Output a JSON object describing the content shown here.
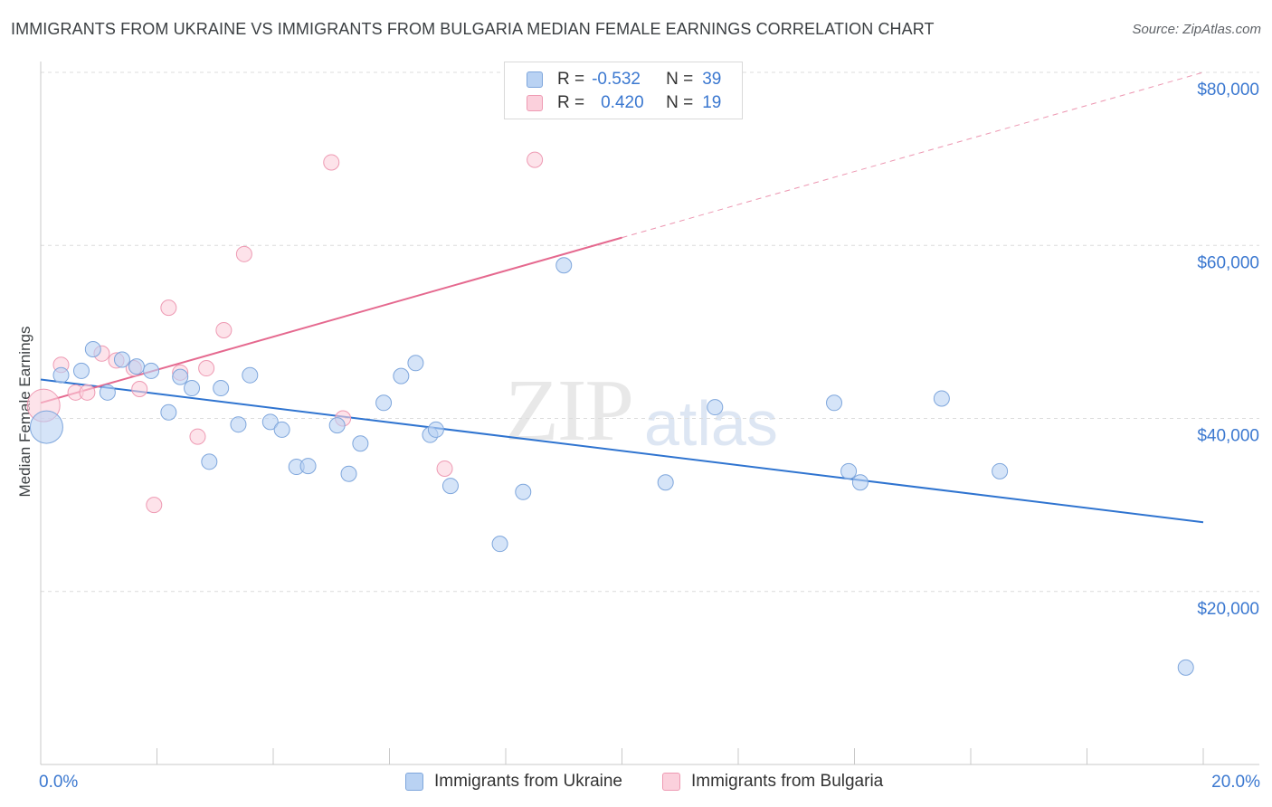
{
  "title": "IMMIGRANTS FROM UKRAINE VS IMMIGRANTS FROM BULGARIA MEDIAN FEMALE EARNINGS CORRELATION CHART",
  "source": "Source: ZipAtlas.com",
  "watermark": {
    "zip": "ZIP",
    "atlas": "atlas"
  },
  "colors": {
    "ukraine_fill": "#b9d2f3",
    "ukraine_stroke": "#7ea6dc",
    "ukraine_line": "#2f74d0",
    "bulgaria_fill": "#fbd0dc",
    "bulgaria_stroke": "#ee9ab3",
    "bulgaria_line": "#e5698f",
    "axis_text": "#3b78d0",
    "grid": "#dcdcdc"
  },
  "legend": {
    "rows": [
      {
        "r_label": "R =",
        "r_value": "-0.532",
        "n_label": "N =",
        "n_value": "39"
      },
      {
        "r_label": "R =",
        "r_value": "0.420",
        "n_label": "N =",
        "n_value": "19"
      }
    ]
  },
  "bottom_legend": [
    "Immigrants from Ukraine",
    "Immigrants from Bulgaria"
  ],
  "chart_data": {
    "type": "scatter",
    "title": "IMMIGRANTS FROM UKRAINE VS IMMIGRANTS FROM BULGARIA MEDIAN FEMALE EARNINGS CORRELATION CHART",
    "xlabel": "",
    "ylabel": "Median Female Earnings",
    "xlim": [
      0,
      20
    ],
    "ylim": [
      0,
      80000
    ],
    "x_tick_labels": [
      "0.0%",
      "20.0%"
    ],
    "y_ticks": [
      20000,
      40000,
      60000,
      80000
    ],
    "y_tick_labels": [
      "$20,000",
      "$40,000",
      "$60,000",
      "$80,000"
    ],
    "grid": true,
    "legend_position": "top-center",
    "series": [
      {
        "name": "Immigrants from Ukraine",
        "r": -0.532,
        "n": 39,
        "trend": {
          "x": [
            0,
            20
          ],
          "y": [
            44500,
            28000
          ]
        },
        "points": [
          {
            "x": 0.1,
            "y": 39000,
            "big": true
          },
          {
            "x": 0.35,
            "y": 45000
          },
          {
            "x": 0.7,
            "y": 45500
          },
          {
            "x": 0.9,
            "y": 48000
          },
          {
            "x": 1.15,
            "y": 43000
          },
          {
            "x": 1.4,
            "y": 46800
          },
          {
            "x": 1.65,
            "y": 46000
          },
          {
            "x": 1.9,
            "y": 45500
          },
          {
            "x": 2.2,
            "y": 40700
          },
          {
            "x": 2.4,
            "y": 44800
          },
          {
            "x": 2.6,
            "y": 43500
          },
          {
            "x": 2.9,
            "y": 35000
          },
          {
            "x": 3.1,
            "y": 43500
          },
          {
            "x": 3.4,
            "y": 39300
          },
          {
            "x": 3.6,
            "y": 45000
          },
          {
            "x": 3.95,
            "y": 39600
          },
          {
            "x": 4.15,
            "y": 38700
          },
          {
            "x": 4.4,
            "y": 34400
          },
          {
            "x": 4.6,
            "y": 34500
          },
          {
            "x": 5.1,
            "y": 39200
          },
          {
            "x": 5.3,
            "y": 33600
          },
          {
            "x": 5.5,
            "y": 37100
          },
          {
            "x": 5.9,
            "y": 41800
          },
          {
            "x": 6.2,
            "y": 44900
          },
          {
            "x": 6.45,
            "y": 46400
          },
          {
            "x": 6.7,
            "y": 38100
          },
          {
            "x": 6.8,
            "y": 38700
          },
          {
            "x": 7.05,
            "y": 32200
          },
          {
            "x": 7.9,
            "y": 25500
          },
          {
            "x": 8.3,
            "y": 31500
          },
          {
            "x": 9.0,
            "y": 57700
          },
          {
            "x": 10.75,
            "y": 32600
          },
          {
            "x": 11.6,
            "y": 41300
          },
          {
            "x": 13.65,
            "y": 41800
          },
          {
            "x": 13.9,
            "y": 33900
          },
          {
            "x": 14.1,
            "y": 32600
          },
          {
            "x": 15.5,
            "y": 42300
          },
          {
            "x": 16.5,
            "y": 33900
          },
          {
            "x": 19.7,
            "y": 11200
          }
        ]
      },
      {
        "name": "Immigrants from Bulgaria",
        "r": 0.42,
        "n": 19,
        "trend": {
          "x": [
            0,
            10
          ],
          "y": [
            41800,
            60900
          ]
        },
        "trend_dashed_to": {
          "x": 20,
          "y": 80000
        },
        "points": [
          {
            "x": 0.05,
            "y": 41500,
            "big": true
          },
          {
            "x": 0.35,
            "y": 46200
          },
          {
            "x": 0.6,
            "y": 43000
          },
          {
            "x": 0.8,
            "y": 43000
          },
          {
            "x": 1.05,
            "y": 47500
          },
          {
            "x": 1.3,
            "y": 46700
          },
          {
            "x": 1.6,
            "y": 45800
          },
          {
            "x": 1.7,
            "y": 43400
          },
          {
            "x": 1.95,
            "y": 30000
          },
          {
            "x": 2.2,
            "y": 52800
          },
          {
            "x": 2.4,
            "y": 45300
          },
          {
            "x": 2.7,
            "y": 37900
          },
          {
            "x": 2.85,
            "y": 45800
          },
          {
            "x": 3.15,
            "y": 50200
          },
          {
            "x": 3.5,
            "y": 59000
          },
          {
            "x": 5.0,
            "y": 69600
          },
          {
            "x": 5.2,
            "y": 40000
          },
          {
            "x": 6.95,
            "y": 34200
          },
          {
            "x": 8.5,
            "y": 69900
          }
        ]
      }
    ]
  }
}
